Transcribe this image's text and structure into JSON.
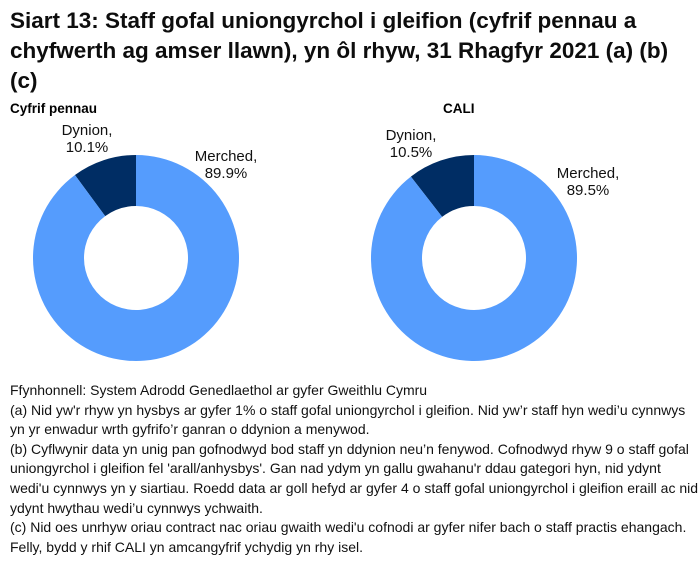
{
  "title": "Siart 13: Staff gofal uniongyrchol i gleifion (cyfrif pennau a chyfwerth ag amser llawn), yn ôl rhyw, 31 Rhagfyr 2021 (a) (b) (c)",
  "colors": {
    "dynion": "#002d64",
    "merched": "#559cfd",
    "background": "#ffffff"
  },
  "chart_data": [
    {
      "type": "pie",
      "subtype": "donut",
      "title": "Cyfrif pennau",
      "categories": [
        "Dynion",
        "Merched"
      ],
      "values": [
        10.1,
        89.9
      ],
      "unit": "%",
      "data_labels": [
        "Dynion,\n10.1%",
        "Merched,\n89.9%"
      ],
      "center": [
        136,
        258
      ],
      "outer_radius": 103,
      "inner_radius": 52,
      "label_positions": [
        [
          87,
          122
        ],
        [
          226,
          148
        ]
      ]
    },
    {
      "type": "pie",
      "subtype": "donut",
      "title": "CALI",
      "categories": [
        "Dynion",
        "Merched"
      ],
      "values": [
        10.5,
        89.5
      ],
      "unit": "%",
      "data_labels": [
        "Dynion,\n10.5%",
        "Merched,\n89.5%"
      ],
      "center": [
        474,
        258
      ],
      "outer_radius": 103,
      "inner_radius": 52,
      "label_positions": [
        [
          411,
          127
        ],
        [
          588,
          165
        ]
      ]
    }
  ],
  "charts": {
    "left": {
      "subtitle": "Cyfrif pennau",
      "dynion_name": "Dynion,",
      "dynion_value": "10.1%",
      "merched_name": "Merched,",
      "merched_value": "89.9%"
    },
    "right": {
      "subtitle": "CALI",
      "dynion_name": "Dynion,",
      "dynion_value": "10.5%",
      "merched_name": "Merched,",
      "merched_value": "89.5%"
    }
  },
  "notes": {
    "source": "Ffynhonnell: System Adrodd Genedlaethol ar gyfer Gweithlu Cymru",
    "a": "(a) Nid yw'r rhyw yn hysbys ar gyfer 1% o staff gofal uniongyrchol i gleifion. Nid yw’r staff hyn wedi’u cynnwys yn yr enwadur wrth gyfrifo’r ganran o ddynion a menywod.",
    "b": "(b) Cyflwynir data yn unig pan gofnodwyd bod staff yn ddynion neu’n fenywod. Cofnodwyd rhyw 9 o staff gofal uniongyrchol i gleifion fel 'arall/anhysbys'. Gan nad ydym yn gallu gwahanu'r ddau gategori hyn, nid ydynt wedi'u cynnwys yn y siartiau. Roedd data ar goll hefyd ar gyfer 4 o staff gofal uniongyrchol i gleifion eraill ac nid ydynt hwythau wedi’u cynnwys ychwaith.",
    "c": "(c) Nid oes unrhyw oriau contract nac oriau gwaith wedi'u cofnodi ar gyfer nifer bach o staff practis ehangach. Felly, bydd y rhif CALI yn amcangyfrif ychydig yn rhy isel."
  }
}
